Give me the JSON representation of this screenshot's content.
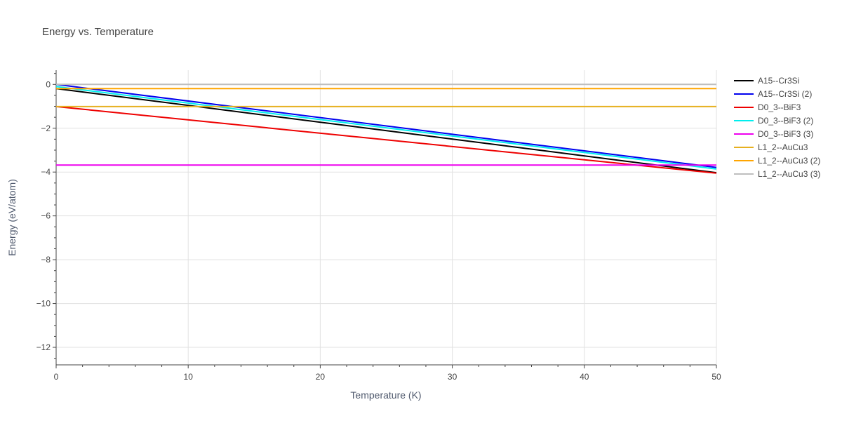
{
  "chart_data": {
    "type": "line",
    "title": "Energy vs. Temperature",
    "xlabel": "Temperature (K)",
    "ylabel": "Energy (eV/atom)",
    "xlim": [
      0,
      50
    ],
    "ylim": [
      -12.8,
      0.65
    ],
    "xticks": [
      0,
      10,
      20,
      30,
      40,
      50
    ],
    "yticks": [
      0,
      -2,
      -4,
      -6,
      -8,
      -10,
      -12
    ],
    "xtick_labels": [
      "0",
      "10",
      "20",
      "30",
      "40",
      "50"
    ],
    "ytick_labels": [
      "0",
      "−2",
      "−4",
      "−6",
      "−8",
      "−10",
      "−12"
    ],
    "grid": true,
    "legend_position": "right",
    "series": [
      {
        "name": "A15--Cr3Si",
        "color": "#000000",
        "x": [
          0,
          50
        ],
        "y": [
          -0.19,
          -4.03
        ]
      },
      {
        "name": "A15--Cr3Si (2)",
        "color": "#0000ee",
        "x": [
          0,
          50
        ],
        "y": [
          0.0,
          -3.79
        ]
      },
      {
        "name": "D0_3--BiF3",
        "color": "#ee0000",
        "x": [
          0,
          50
        ],
        "y": [
          -1.01,
          -4.05
        ]
      },
      {
        "name": "D0_3--BiF3 (2)",
        "color": "#00eeee",
        "x": [
          0,
          50
        ],
        "y": [
          -0.1,
          -3.86
        ]
      },
      {
        "name": "D0_3--BiF3 (3)",
        "color": "#ee00ee",
        "x": [
          0,
          50
        ],
        "y": [
          -3.68,
          -3.68
        ]
      },
      {
        "name": "L1_2--AuCu3",
        "color": "#e6b020",
        "x": [
          0,
          50
        ],
        "y": [
          -1.01,
          -1.01
        ]
      },
      {
        "name": "L1_2--AuCu3 (2)",
        "color": "#ffa500",
        "x": [
          0,
          50
        ],
        "y": [
          -0.19,
          -0.19
        ]
      },
      {
        "name": "L1_2--AuCu3 (3)",
        "color": "#bebebe",
        "x": [
          0,
          50
        ],
        "y": [
          0.0,
          0.0
        ]
      }
    ]
  }
}
